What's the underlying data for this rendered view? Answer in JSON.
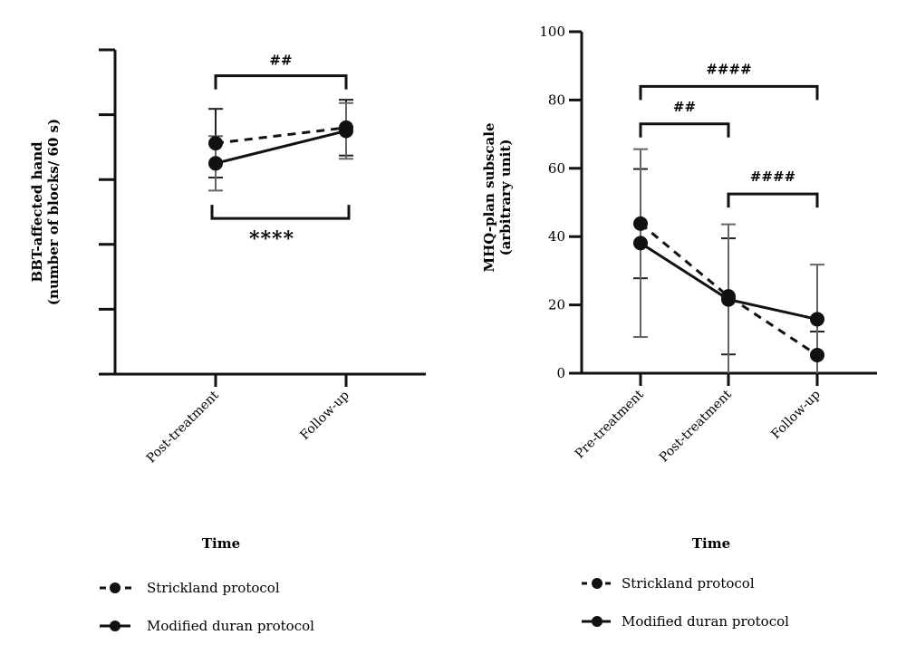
{
  "chart_data": [
    {
      "type": "line",
      "title": "",
      "xlabel": "Time",
      "ylabel_line1": "BBT-affected hand",
      "ylabel_line2": "(number of blocks/ 60 s)",
      "y_tick_labels_visible": false,
      "y_units_note": "No numeric tick labels shown; values expressed in axis-tick units (0 = bottom tick, 5 = top tick)",
      "ylim": [
        0,
        5
      ],
      "y_ticks": [
        0,
        1,
        2,
        3,
        4,
        5
      ],
      "categories": [
        "Post-treatment",
        "Follow-up"
      ],
      "grid": false,
      "series": [
        {
          "name": "Strickland protocol",
          "style": "dashed",
          "values": [
            3.56,
            3.8
          ],
          "error": [
            0.53,
            0.43
          ]
        },
        {
          "name": "Modified duran protocol",
          "style": "solid",
          "values": [
            3.25,
            3.75
          ],
          "error": [
            0.42,
            0.43
          ]
        }
      ],
      "annotations": [
        {
          "label": "##",
          "from": "Post-treatment",
          "to": "Follow-up",
          "position": "above",
          "level": 4.6
        },
        {
          "label": "****",
          "from": "Post-treatment",
          "to": "Follow-up",
          "position": "below",
          "level": 2.4
        }
      ],
      "legend": {
        "placement": "bottom-left",
        "entries": [
          {
            "label": "Strickland protocol",
            "style": "dashed"
          },
          {
            "label": "Modified duran protocol",
            "style": "solid"
          }
        ]
      }
    },
    {
      "type": "line",
      "title": "",
      "xlabel": "Time",
      "ylabel_line1": "MHQ-plan subscale",
      "ylabel_line2": "(arbitrary unit)",
      "ylim": [
        0,
        100
      ],
      "y_ticks": [
        0,
        20,
        40,
        60,
        80,
        100
      ],
      "y_tick_labels": [
        "0",
        "20",
        "40",
        "60",
        "80",
        "100"
      ],
      "categories": [
        "Pre-treatment",
        "Post-treatment",
        "Follow-up"
      ],
      "grid": false,
      "series": [
        {
          "name": "Strickland protocol",
          "style": "dashed",
          "values": [
            43.8,
            22.5,
            5.3
          ],
          "error": [
            16.0,
            17.0,
            6.9
          ]
        },
        {
          "name": "Modified duran protocol",
          "style": "solid",
          "values": [
            38.1,
            21.6,
            15.8
          ],
          "error": [
            27.5,
            22.0,
            16.0
          ]
        }
      ],
      "annotations": [
        {
          "label": "####",
          "from": "Pre-treatment",
          "to": "Follow-up",
          "position": "above",
          "level": 84
        },
        {
          "label": "##",
          "from": "Pre-treatment",
          "to": "Post-treatment",
          "position": "above",
          "level": 73
        },
        {
          "label": "####",
          "from": "Post-treatment",
          "to": "Follow-up",
          "position": "above",
          "level": 52.5
        }
      ],
      "legend": {
        "placement": "bottom-left",
        "entries": [
          {
            "label": "Strickland protocol",
            "style": "dashed"
          },
          {
            "label": "Modified duran protocol",
            "style": "solid"
          }
        ]
      }
    }
  ]
}
